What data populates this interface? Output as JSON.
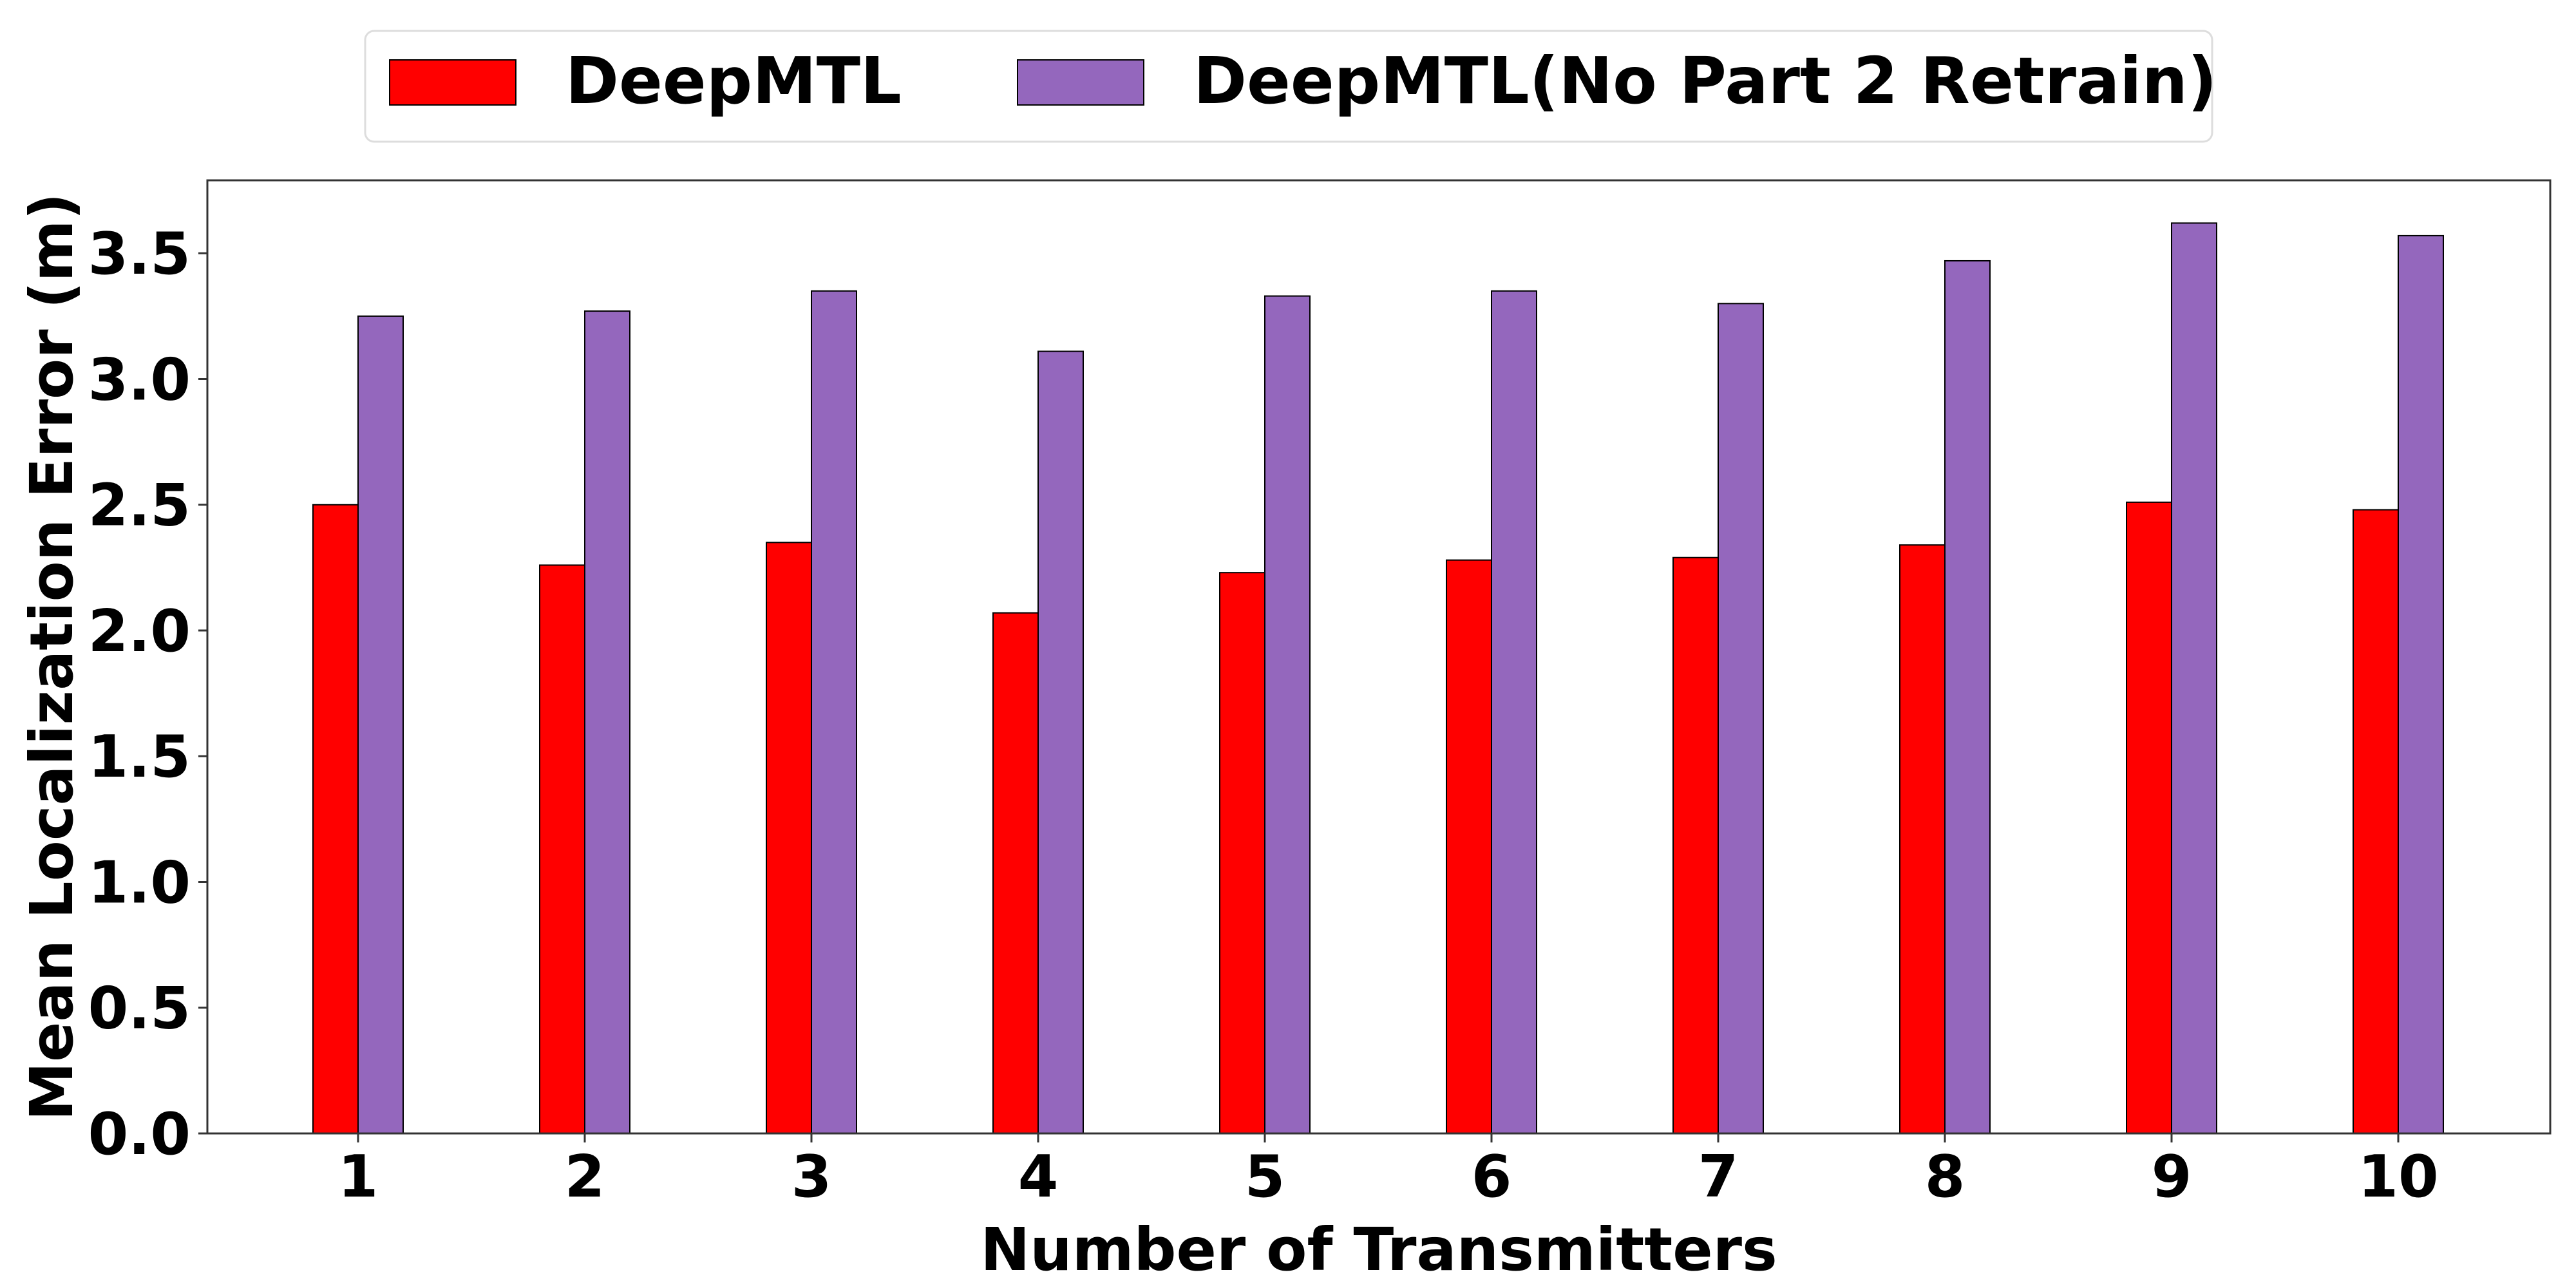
{
  "chart_data": {
    "type": "bar",
    "xlabel": "Number of Transmitters",
    "ylabel": "Mean Localization Error (m)",
    "categories": [
      "1",
      "2",
      "3",
      "4",
      "5",
      "6",
      "7",
      "8",
      "9",
      "10"
    ],
    "series": [
      {
        "name": "DeepMTL",
        "color": "#ff0000",
        "values": [
          2.5,
          2.26,
          2.35,
          2.07,
          2.23,
          2.28,
          2.29,
          2.34,
          2.51,
          2.48
        ]
      },
      {
        "name": "DeepMTL(No Part 2 Retrain)",
        "color": "#9467bd",
        "values": [
          3.25,
          3.27,
          3.35,
          3.11,
          3.33,
          3.35,
          3.3,
          3.47,
          3.62,
          3.57
        ]
      }
    ],
    "ylim": [
      0,
      3.79
    ],
    "yticks": [
      "0.0",
      "0.5",
      "1.0",
      "1.5",
      "2.0",
      "2.5",
      "3.0",
      "3.5"
    ],
    "grid": false,
    "legend_position": "top-center"
  }
}
